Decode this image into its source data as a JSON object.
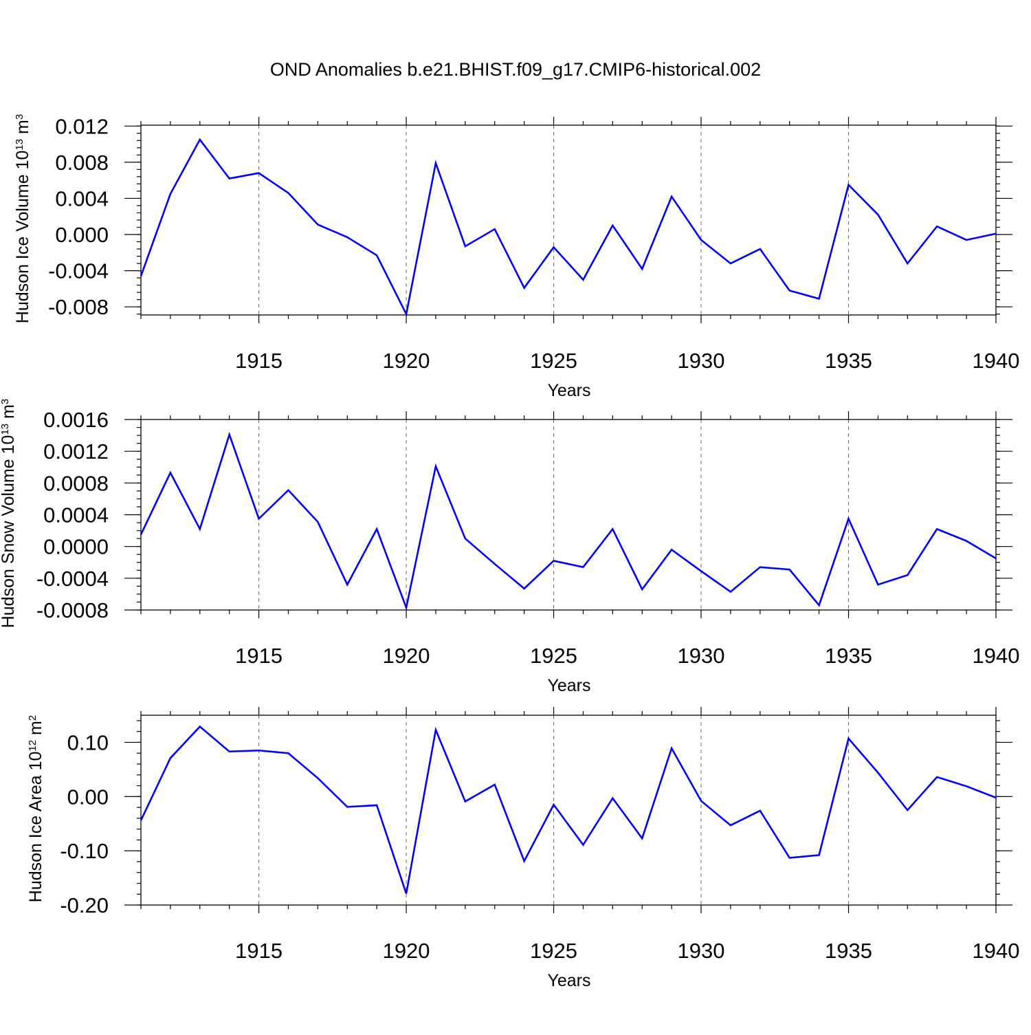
{
  "title": "OND Anomalies b.e21.BHIST.f09_g17.CMIP6-historical.002",
  "colors": {
    "line": "#0000ff",
    "frame": "#000000",
    "grid": "#666666"
  },
  "chart_data": [
    {
      "type": "line",
      "xlabel": "Years",
      "ylabel": {
        "main": "Hudson Ice Volume 10",
        "sup": "13",
        "unit": " m",
        "unit_sup": "3"
      },
      "xlim": [
        1911,
        1940
      ],
      "ylim": [
        -0.0089,
        0.0121
      ],
      "xticks": [
        1915,
        1920,
        1925,
        1930,
        1935,
        1940
      ],
      "xtick_labels": [
        "1915",
        "1920",
        "1925",
        "1930",
        "1935",
        "1940"
      ],
      "yticks": [
        -0.008,
        -0.004,
        0.0,
        0.004,
        0.008,
        0.012
      ],
      "ytick_labels": [
        "-0.008",
        "-0.004",
        "0.000",
        "0.004",
        "0.008",
        "0.012"
      ],
      "yminor_step": 0.0008,
      "grid": "vertical dashed at major x ticks",
      "x": [
        1911,
        1912,
        1913,
        1914,
        1915,
        1916,
        1917,
        1918,
        1919,
        1920,
        1921,
        1922,
        1923,
        1924,
        1925,
        1926,
        1927,
        1928,
        1929,
        1930,
        1931,
        1932,
        1933,
        1934,
        1935,
        1936,
        1937,
        1938,
        1939,
        1940
      ],
      "values": [
        -0.0046,
        0.0045,
        0.0105,
        0.0062,
        0.0068,
        0.0046,
        0.0011,
        -0.0003,
        -0.0023,
        -0.0088,
        0.0079,
        -0.0013,
        0.0006,
        -0.0059,
        -0.0014,
        -0.005,
        0.001,
        -0.0038,
        0.0042,
        -0.0006,
        -0.0032,
        -0.0016,
        -0.0062,
        -0.0071,
        0.0055,
        0.0022,
        -0.0032,
        0.0009,
        -0.0006,
        0.0001
      ]
    },
    {
      "type": "line",
      "xlabel": "Years",
      "ylabel": {
        "main": "Hudson Snow Volume 10",
        "sup": "13",
        "unit": " m",
        "unit_sup": "3"
      },
      "xlim": [
        1911,
        1940
      ],
      "ylim": [
        -0.0008,
        0.0016
      ],
      "xticks": [
        1915,
        1920,
        1925,
        1930,
        1935,
        1940
      ],
      "xtick_labels": [
        "1915",
        "1920",
        "1925",
        "1930",
        "1935",
        "1940"
      ],
      "yticks": [
        -0.0008,
        -0.0004,
        0.0,
        0.0004,
        0.0008,
        0.0012,
        0.0016
      ],
      "ytick_labels": [
        "-0.0008",
        "-0.0004",
        "0.0000",
        "0.0004",
        "0.0008",
        "0.0012",
        "0.0016"
      ],
      "yminor_step": 0.0001,
      "grid": "vertical dashed at major x ticks",
      "x": [
        1911,
        1912,
        1913,
        1914,
        1915,
        1916,
        1917,
        1918,
        1919,
        1920,
        1921,
        1922,
        1923,
        1924,
        1925,
        1926,
        1927,
        1928,
        1929,
        1930,
        1931,
        1932,
        1933,
        1934,
        1935,
        1936,
        1937,
        1938,
        1939,
        1940
      ],
      "values": [
        0.00015,
        0.00093,
        0.00022,
        0.00141,
        0.00035,
        0.00071,
        0.00031,
        -0.00048,
        0.00022,
        -0.00077,
        0.00101,
        0.0001,
        -0.00022,
        -0.00053,
        -0.00018,
        -0.00026,
        0.00022,
        -0.00054,
        -4e-05,
        -0.00031,
        -0.00057,
        -0.00026,
        -0.00029,
        -0.00074,
        0.00035,
        -0.00048,
        -0.00036,
        0.00022,
        7e-05,
        -0.00015
      ]
    },
    {
      "type": "line",
      "xlabel": "Years",
      "ylabel": {
        "main": "Hudson Ice Area 10",
        "sup": "12",
        "unit": " m",
        "unit_sup": "2"
      },
      "xlim": [
        1911,
        1940
      ],
      "ylim": [
        -0.2,
        0.15
      ],
      "xticks": [
        1915,
        1920,
        1925,
        1930,
        1935,
        1940
      ],
      "xtick_labels": [
        "1915",
        "1920",
        "1925",
        "1930",
        "1935",
        "1940"
      ],
      "yticks": [
        -0.2,
        -0.1,
        0.0,
        0.1
      ],
      "ytick_labels": [
        "-0.20",
        "-0.10",
        "0.00",
        "0.10"
      ],
      "yminor_step": 0.02,
      "grid": "vertical dashed at major x ticks",
      "x": [
        1911,
        1912,
        1913,
        1914,
        1915,
        1916,
        1917,
        1918,
        1919,
        1920,
        1921,
        1922,
        1923,
        1924,
        1925,
        1926,
        1927,
        1928,
        1929,
        1930,
        1931,
        1932,
        1933,
        1934,
        1935,
        1936,
        1937,
        1938,
        1939,
        1940
      ],
      "values": [
        -0.044,
        0.071,
        0.129,
        0.083,
        0.085,
        0.08,
        0.034,
        -0.019,
        -0.016,
        -0.179,
        0.123,
        -0.009,
        0.022,
        -0.119,
        -0.015,
        -0.089,
        -0.003,
        -0.077,
        0.089,
        -0.008,
        -0.053,
        -0.026,
        -0.113,
        -0.108,
        0.107,
        0.044,
        -0.025,
        0.036,
        0.019,
        -0.002
      ]
    }
  ]
}
